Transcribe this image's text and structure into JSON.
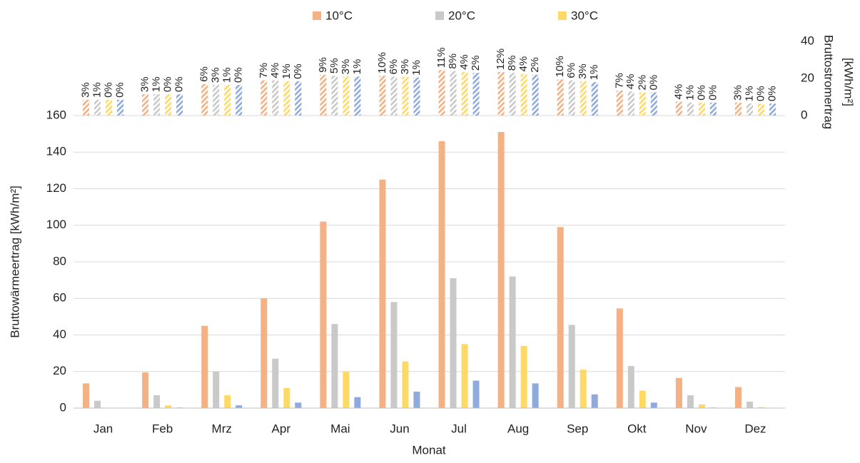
{
  "chart_data": [
    {
      "type": "bar",
      "y_label": "Bruttowärmeertrag [kWh/m²]",
      "x_label": "Monat",
      "categories": [
        "Jan",
        "Feb",
        "Mrz",
        "Apr",
        "Mai",
        "Jun",
        "Jul",
        "Aug",
        "Sep",
        "Okt",
        "Nov",
        "Dez"
      ],
      "series": [
        {
          "name": "10°C",
          "color": "#f4b183",
          "values": [
            13.5,
            19.5,
            45,
            60,
            102,
            125,
            146,
            151,
            99,
            54.5,
            16.5,
            11.5
          ]
        },
        {
          "name": "20°C",
          "color": "#c9c9c9",
          "values": [
            4,
            7,
            20,
            27,
            46,
            58,
            71,
            72,
            45.5,
            23,
            7,
            3.5
          ]
        },
        {
          "name": "30°C",
          "color": "#ffd966",
          "values": [
            0,
            1.5,
            7,
            11,
            20,
            25.5,
            35,
            34,
            21,
            9.5,
            2,
            0.5
          ]
        },
        {
          "color": "#8faadc",
          "values": [
            0,
            0.3,
            1.5,
            3,
            6,
            9,
            15,
            13.5,
            7.5,
            3,
            0.3,
            0
          ]
        }
      ],
      "ylim": [
        0,
        160
      ],
      "yticks": [
        0,
        20,
        40,
        60,
        80,
        100,
        120,
        140,
        160
      ],
      "grid": true,
      "legend": "top"
    },
    {
      "type": "bar",
      "pattern": "hatched",
      "y2_label": [
        "Bruttostromertrag",
        "[kWh/m²]"
      ],
      "series": [
        {
          "color": "#f4b183",
          "axis": "y2",
          "values": [
            8.5,
            11.5,
            17,
            19,
            22,
            21.5,
            24.5,
            23.5,
            19.5,
            13.5,
            7.5,
            7
          ],
          "share_labels": [
            "3%",
            "3%",
            "6%",
            "7%",
            "9%",
            "10%",
            "11%",
            "12%",
            "10%",
            "7%",
            "4%",
            "3%"
          ]
        },
        {
          "color": "#c9c9c9",
          "axis": "y2",
          "values": [
            8.5,
            11.5,
            16.5,
            19,
            21.5,
            21,
            24,
            23,
            19,
            13,
            7,
            6.5
          ],
          "share_labels": [
            "1%",
            "1%",
            "3%",
            "4%",
            "5%",
            "6%",
            "8%",
            "8%",
            "6%",
            "4%",
            "1%",
            "1%"
          ]
        },
        {
          "color": "#ffd966",
          "axis": "y2",
          "values": [
            8.5,
            11.5,
            16.5,
            18.5,
            21,
            21,
            23.5,
            22.5,
            18.5,
            12.5,
            7,
            6.5
          ],
          "share_labels": [
            "0%",
            "0%",
            "1%",
            "1%",
            "3%",
            "3%",
            "4%",
            "4%",
            "3%",
            "2%",
            "0%",
            "0%"
          ]
        },
        {
          "color": "#8faadc",
          "axis": "y2",
          "values": [
            8.5,
            11.5,
            16.5,
            18.5,
            21,
            20.5,
            23,
            22,
            18,
            12.5,
            7,
            6.5
          ],
          "share_labels": [
            "0%",
            "0%",
            "0%",
            "0%",
            "1%",
            "1%",
            "2%",
            "2%",
            "1%",
            "0%",
            "0%",
            "0%"
          ]
        }
      ],
      "y2lim": [
        0,
        40
      ],
      "y2ticks": [
        0,
        20,
        40
      ]
    }
  ]
}
